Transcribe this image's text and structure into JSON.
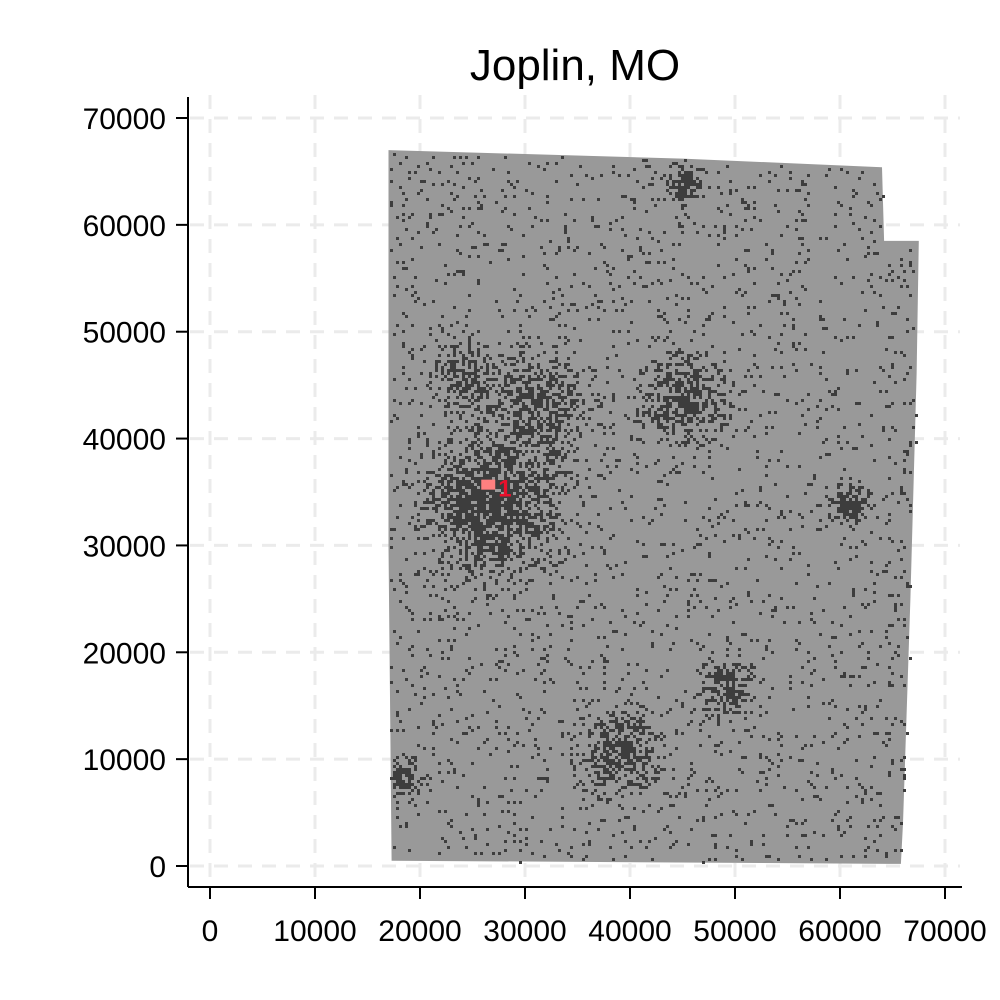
{
  "chart_data": {
    "type": "scatter",
    "title": "Joplin, MO",
    "xlabel": "",
    "ylabel": "",
    "xlim": [
      0,
      70000
    ],
    "ylim": [
      0,
      70000
    ],
    "xticks": [
      0,
      10000,
      20000,
      30000,
      40000,
      50000,
      60000,
      70000
    ],
    "yticks": [
      0,
      10000,
      20000,
      30000,
      40000,
      50000,
      60000,
      70000
    ],
    "x_tick_labels": [
      "0",
      "10000",
      "20000",
      "30000",
      "40000",
      "50000",
      "60000",
      "70000"
    ],
    "y_tick_labels": [
      "0",
      "10000",
      "20000",
      "30000",
      "40000",
      "50000",
      "60000",
      "70000"
    ],
    "grid": true,
    "background_region": {
      "description_color": "#999999",
      "x_range": [
        17000,
        68000
      ],
      "y_range": [
        500,
        67000
      ]
    },
    "dense_clusters": [
      {
        "x": 27000,
        "y": 34000
      },
      {
        "x": 31000,
        "y": 43000
      },
      {
        "x": 45000,
        "y": 44000
      },
      {
        "x": 39000,
        "y": 11000
      },
      {
        "x": 24000,
        "y": 46000
      },
      {
        "x": 49000,
        "y": 17000
      },
      {
        "x": 61000,
        "y": 34000
      },
      {
        "x": 45000,
        "y": 64000
      },
      {
        "x": 18000,
        "y": 8500
      }
    ],
    "annotations": [
      {
        "label": "1",
        "x": 26500,
        "y": 35500,
        "color": "#e8102c"
      }
    ],
    "colors": {
      "region": "#999999",
      "points": "#3d3d3d",
      "highlight": "#ff8080",
      "annotation": "#e8102c",
      "grid": "#ebebeb",
      "axis": "#000000"
    }
  }
}
